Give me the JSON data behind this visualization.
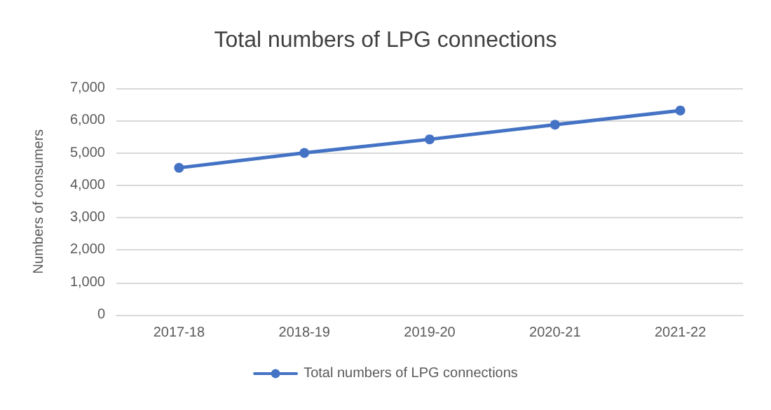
{
  "chart_data": {
    "type": "line",
    "title": "Total numbers of LPG connections",
    "ylabel": "Numbers of consumers",
    "categories": [
      "2017-18",
      "2018-19",
      "2019-20",
      "2020-21",
      "2021-22"
    ],
    "series": [
      {
        "name": "Total numbers of LPG connections",
        "color": "#4472c4",
        "values": [
          4540,
          5000,
          5420,
          5870,
          6310
        ]
      }
    ],
    "ylim": [
      0,
      7000
    ],
    "yticks": [
      0,
      {
        "value": 1000,
        "label": "1,000"
      },
      {
        "value": 2000,
        "label": "2,000"
      },
      {
        "value": 3000,
        "label": "3,000"
      },
      {
        "value": 4000,
        "label": "4,000"
      },
      {
        "value": 5000,
        "label": "5,000"
      },
      {
        "value": 6000,
        "label": "6,000"
      },
      {
        "value": 7000,
        "label": "7,000"
      }
    ],
    "grid": "y",
    "legend": "bottom",
    "marker": "circle",
    "line_style": "solid"
  }
}
